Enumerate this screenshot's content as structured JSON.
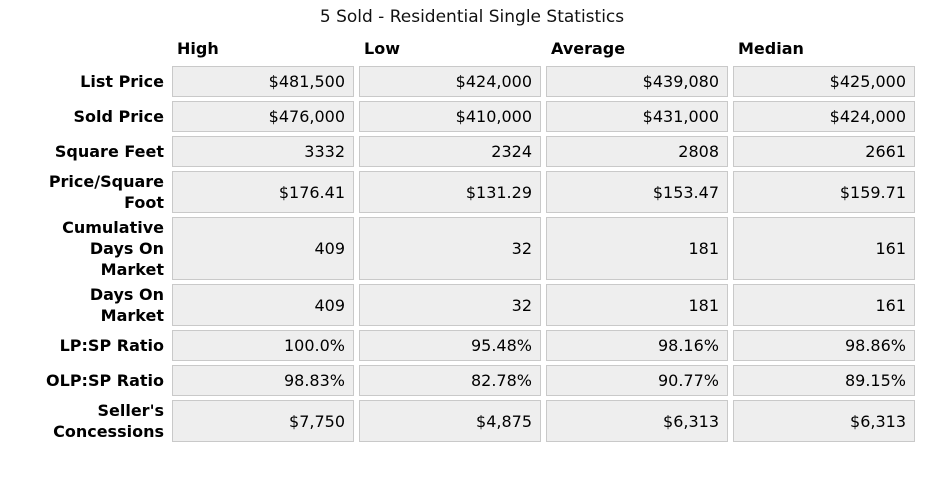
{
  "chart_data": {
    "type": "table",
    "title": "5 Sold - Residential Single Statistics",
    "columns": [
      "High",
      "Low",
      "Average",
      "Median"
    ],
    "rows": [
      {
        "label": "List Price",
        "values": [
          "$481,500",
          "$424,000",
          "$439,080",
          "$425,000"
        ]
      },
      {
        "label": "Sold Price",
        "values": [
          "$476,000",
          "$410,000",
          "$431,000",
          "$424,000"
        ]
      },
      {
        "label": "Square Feet",
        "values": [
          "3332",
          "2324",
          "2808",
          "2661"
        ]
      },
      {
        "label": "Price/Square\nFoot",
        "values": [
          "$176.41",
          "$131.29",
          "$153.47",
          "$159.71"
        ]
      },
      {
        "label": "Cumulative\nDays On\nMarket",
        "values": [
          "409",
          "32",
          "181",
          "161"
        ]
      },
      {
        "label": "Days On\nMarket",
        "values": [
          "409",
          "32",
          "181",
          "161"
        ]
      },
      {
        "label": "LP:SP Ratio",
        "values": [
          "100.0%",
          "95.48%",
          "98.16%",
          "98.86%"
        ]
      },
      {
        "label": "OLP:SP Ratio",
        "values": [
          "98.83%",
          "82.78%",
          "90.77%",
          "89.15%"
        ]
      },
      {
        "label": "Seller's\nConcessions",
        "values": [
          "$7,750",
          "$4,875",
          "$6,313",
          "$6,313"
        ]
      }
    ],
    "layout": {
      "legend": "none",
      "grid": "off",
      "header_position": "top",
      "row_labels_position": "left"
    },
    "colors": {
      "cell_background": "#eeeeee",
      "cell_border": "#c9c9c9",
      "text": "#000000",
      "page_background": "#ffffff"
    }
  }
}
